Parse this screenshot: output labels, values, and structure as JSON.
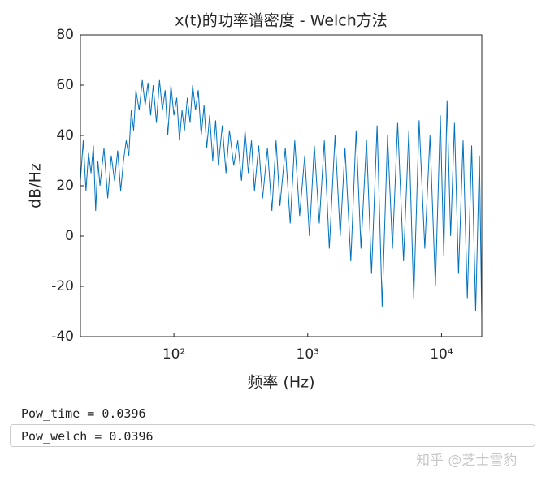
{
  "chart_data": {
    "type": "line",
    "title": "x(t)的功率谱密度 - Welch方法",
    "xlabel": "频率 (Hz)",
    "ylabel": "dB/Hz",
    "log_x": true,
    "color": "#0072bd",
    "xlim": [
      20,
      20000
    ],
    "ylim": [
      -40,
      80
    ],
    "xticks": [
      {
        "value": 100,
        "label": "10²"
      },
      {
        "value": 1000,
        "label": "10³"
      },
      {
        "value": 10000,
        "label": "10⁴"
      }
    ],
    "yticks": [
      -40,
      -20,
      0,
      20,
      40,
      60,
      80
    ],
    "x": [
      20,
      21,
      22,
      23,
      24,
      25,
      26,
      27,
      28,
      30,
      32,
      34,
      36,
      38,
      40,
      42,
      44,
      46,
      48,
      50,
      52,
      55,
      58,
      61,
      64,
      67,
      70,
      74,
      78,
      82,
      86,
      90,
      95,
      100,
      105,
      110,
      115,
      120,
      126,
      132,
      138,
      145,
      152,
      160,
      168,
      176,
      185,
      195,
      205,
      215,
      230,
      245,
      260,
      280,
      300,
      320,
      340,
      360,
      380,
      400,
      430,
      460,
      500,
      540,
      580,
      620,
      680,
      740,
      800,
      870,
      950,
      1030,
      1120,
      1220,
      1330,
      1450,
      1600,
      1750,
      1900,
      2100,
      2300,
      2500,
      2750,
      3000,
      3300,
      3600,
      3950,
      4300,
      4700,
      5200,
      5700,
      6200,
      6800,
      7500,
      8200,
      9000,
      9800,
      10400,
      11000,
      11700,
      12500,
      13400,
      14500,
      15600,
      16800,
      18000,
      19200,
      20000
    ],
    "values": [
      22,
      38,
      18,
      33,
      25,
      36,
      10,
      30,
      20,
      35,
      15,
      32,
      22,
      34,
      18,
      30,
      38,
      32,
      50,
      42,
      58,
      50,
      62,
      52,
      61,
      48,
      60,
      45,
      62,
      50,
      58,
      40,
      60,
      48,
      55,
      38,
      50,
      42,
      55,
      45,
      60,
      50,
      58,
      40,
      52,
      35,
      48,
      30,
      46,
      28,
      44,
      25,
      42,
      28,
      38,
      22,
      42,
      25,
      38,
      18,
      36,
      15,
      35,
      10,
      38,
      12,
      35,
      5,
      38,
      8,
      32,
      0,
      36,
      5,
      38,
      -5,
      40,
      0,
      35,
      -10,
      42,
      -5,
      38,
      -15,
      44,
      -28,
      40,
      -5,
      45,
      -10,
      42,
      -25,
      46,
      -5,
      40,
      -20,
      48,
      -8,
      54,
      0,
      45,
      -15,
      38,
      -25,
      36,
      -30,
      32,
      -33
    ]
  },
  "console": {
    "lines": [
      "Pow_time = 0.0396",
      "Pow_welch = 0.0396"
    ]
  },
  "watermark": "知乎 @芝士雪豹"
}
